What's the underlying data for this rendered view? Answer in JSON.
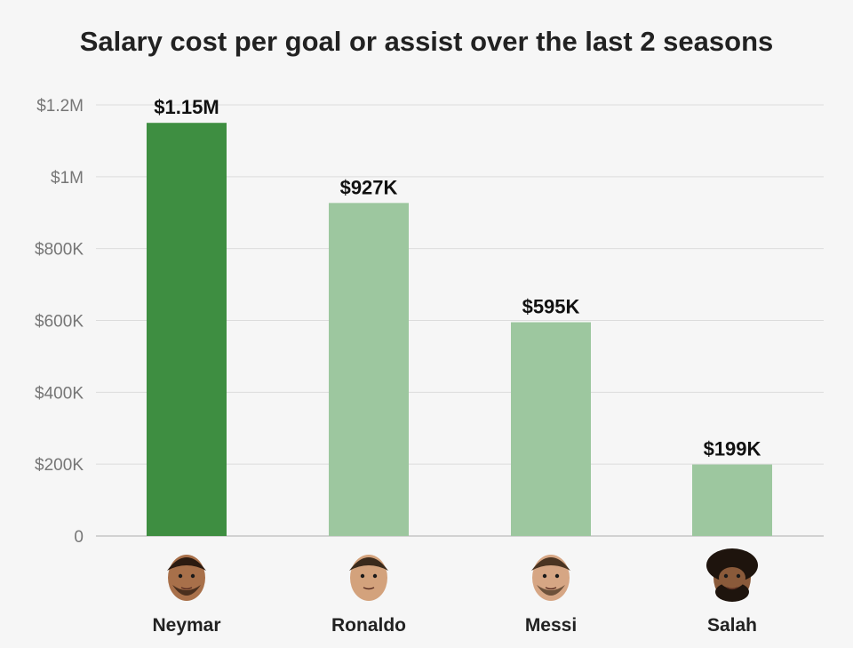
{
  "chart_data": {
    "type": "bar",
    "title": "Salary cost per goal or assist over the last 2 seasons",
    "categories": [
      "Neymar",
      "Ronaldo",
      "Messi",
      "Salah"
    ],
    "values": [
      1150000,
      927000,
      595000,
      199000
    ],
    "value_labels": [
      "$1.15M",
      "$927K",
      "$595K",
      "$199K"
    ],
    "ylim": [
      0,
      1200000
    ],
    "yticks": [
      0,
      200000,
      400000,
      600000,
      800000,
      1000000,
      1200000
    ],
    "ytick_labels": [
      "0",
      "$200K",
      "$400K",
      "$600K",
      "$800K",
      "$1M",
      "$1.2M"
    ],
    "grid": true,
    "bar_colors": [
      "#3e8e41",
      "#9dc79f",
      "#9dc79f",
      "#9dc79f"
    ],
    "category_icons": [
      "neymar-face-icon",
      "ronaldo-face-icon",
      "messi-face-icon",
      "salah-face-icon"
    ]
  },
  "colors": {
    "background": "#f6f6f6",
    "highlight_bar": "#3e8e41",
    "muted_bar": "#9dc79f"
  }
}
